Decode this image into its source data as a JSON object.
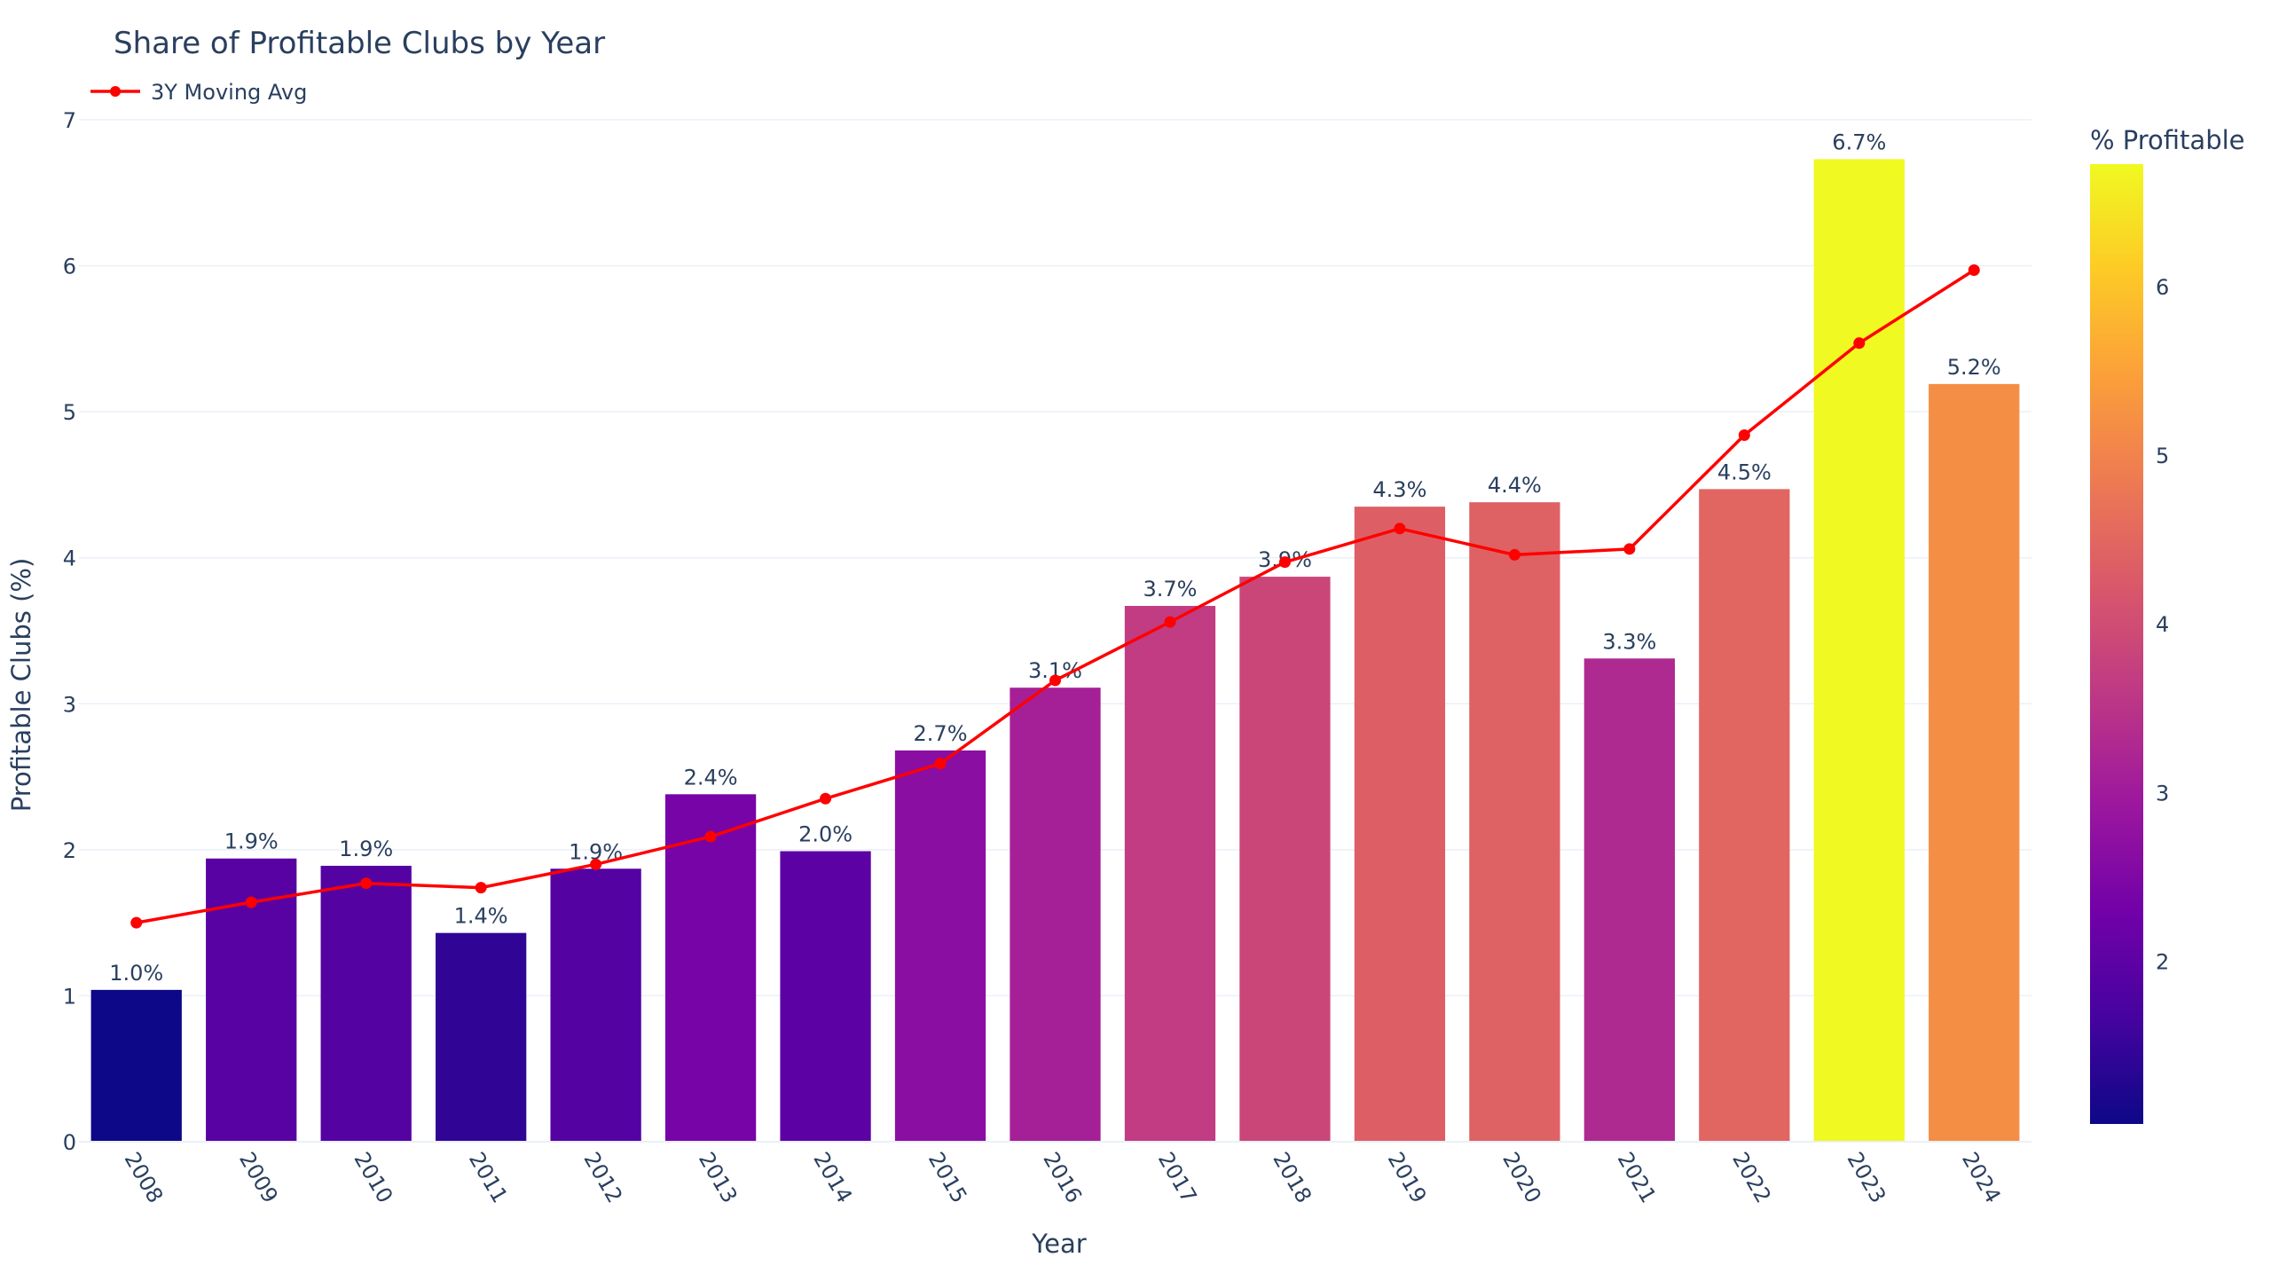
{
  "chart_data": {
    "type": "bar",
    "title": "Share of Profitable Clubs by Year",
    "xlabel": "Year",
    "ylabel": "Profitable Clubs (%)",
    "ylim": [
      0,
      7
    ],
    "yticks": [
      "0",
      "1",
      "2",
      "3",
      "4",
      "5",
      "6",
      "7"
    ],
    "grid": true,
    "legend_position": "top-left",
    "categories": [
      "2008",
      "2009",
      "2010",
      "2011",
      "2012",
      "2013",
      "2014",
      "2015",
      "2016",
      "2017",
      "2018",
      "2019",
      "2020",
      "2021",
      "2022",
      "2023",
      "2024"
    ],
    "series": [
      {
        "kind": "bar",
        "values": [
          1.04,
          1.94,
          1.89,
          1.43,
          1.87,
          2.38,
          1.99,
          2.68,
          3.11,
          3.67,
          3.87,
          4.35,
          4.38,
          3.31,
          4.47,
          6.73,
          5.19
        ],
        "data_labels": [
          "1.0%",
          "1.9%",
          "1.9%",
          "1.4%",
          "1.9%",
          "2.4%",
          "2.0%",
          "2.7%",
          "3.1%",
          "3.7%",
          "3.9%",
          "4.3%",
          "4.4%",
          "3.3%",
          "4.5%",
          "6.7%",
          "5.2%"
        ],
        "colorscale": "Plasma"
      },
      {
        "kind": "line",
        "name": "3Y Moving Avg",
        "color": "#ff0000",
        "values": [
          1.5,
          1.64,
          1.77,
          1.74,
          1.9,
          2.09,
          2.35,
          2.59,
          3.16,
          3.56,
          3.97,
          4.2,
          4.02,
          4.06,
          4.84,
          5.47,
          5.97
        ]
      }
    ],
    "colorbar": {
      "title": "% Profitable",
      "range": [
        1.04,
        6.73
      ],
      "ticks": [
        "2",
        "3",
        "4",
        "5",
        "6"
      ]
    }
  }
}
